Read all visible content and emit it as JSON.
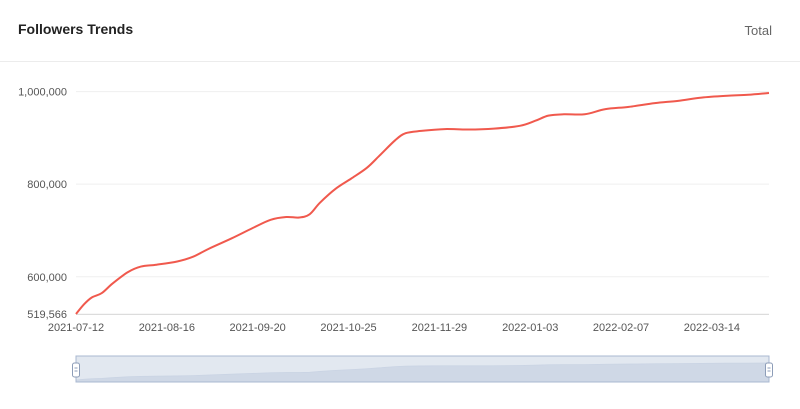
{
  "header": {
    "title": "Followers Trends",
    "total_label": "Total"
  },
  "colors": {
    "line": "#f0594d",
    "grid": "#efefef",
    "axis": "#dcdcdc",
    "slider_fill": "#d4dcea",
    "slider_border": "#aab8d0",
    "slider_area": "#c2cde0"
  },
  "chart_data": {
    "type": "line",
    "title": "Followers Trends",
    "xlabel": "",
    "ylabel": "",
    "x_type": "date",
    "xlim": [
      "2021-07-12",
      "2022-04-05"
    ],
    "ylim": [
      519566,
      1025000
    ],
    "y_ticks": [
      519566,
      600000,
      800000,
      1000000
    ],
    "y_tick_labels": [
      "519,566",
      "600,000",
      "800,000",
      "1,000,000"
    ],
    "x_ticks": [
      "2021-07-12",
      "2021-08-16",
      "2021-09-20",
      "2021-10-25",
      "2021-11-29",
      "2022-01-03",
      "2022-02-07",
      "2022-03-14"
    ],
    "grid": true,
    "series": [
      {
        "color": "#f0594d",
        "points": [
          [
            "2021-07-12",
            519566
          ],
          [
            "2021-07-15",
            540000
          ],
          [
            "2021-07-18",
            555000
          ],
          [
            "2021-07-22",
            565000
          ],
          [
            "2021-07-26",
            585000
          ],
          [
            "2021-08-01",
            610000
          ],
          [
            "2021-08-06",
            622000
          ],
          [
            "2021-08-12",
            626000
          ],
          [
            "2021-08-20",
            633000
          ],
          [
            "2021-08-26",
            643000
          ],
          [
            "2021-09-01",
            660000
          ],
          [
            "2021-09-10",
            683000
          ],
          [
            "2021-09-18",
            705000
          ],
          [
            "2021-09-25",
            723000
          ],
          [
            "2021-10-01",
            729000
          ],
          [
            "2021-10-06",
            728000
          ],
          [
            "2021-10-10",
            735000
          ],
          [
            "2021-10-14",
            760000
          ],
          [
            "2021-10-20",
            790000
          ],
          [
            "2021-10-26",
            812000
          ],
          [
            "2021-11-01",
            835000
          ],
          [
            "2021-11-06",
            862000
          ],
          [
            "2021-11-12",
            895000
          ],
          [
            "2021-11-16",
            910000
          ],
          [
            "2021-11-22",
            915000
          ],
          [
            "2021-12-01",
            919000
          ],
          [
            "2021-12-10",
            918000
          ],
          [
            "2021-12-20",
            920000
          ],
          [
            "2021-12-30",
            926000
          ],
          [
            "2022-01-05",
            937000
          ],
          [
            "2022-01-10",
            948000
          ],
          [
            "2022-01-16",
            951000
          ],
          [
            "2022-01-24",
            951000
          ],
          [
            "2022-02-01",
            962000
          ],
          [
            "2022-02-10",
            967000
          ],
          [
            "2022-02-20",
            975000
          ],
          [
            "2022-03-01",
            980000
          ],
          [
            "2022-03-10",
            987000
          ],
          [
            "2022-03-20",
            991000
          ],
          [
            "2022-03-28",
            993000
          ],
          [
            "2022-04-05",
            997000
          ]
        ]
      }
    ]
  },
  "slider": {
    "start_fraction": 0,
    "end_fraction": 1
  }
}
